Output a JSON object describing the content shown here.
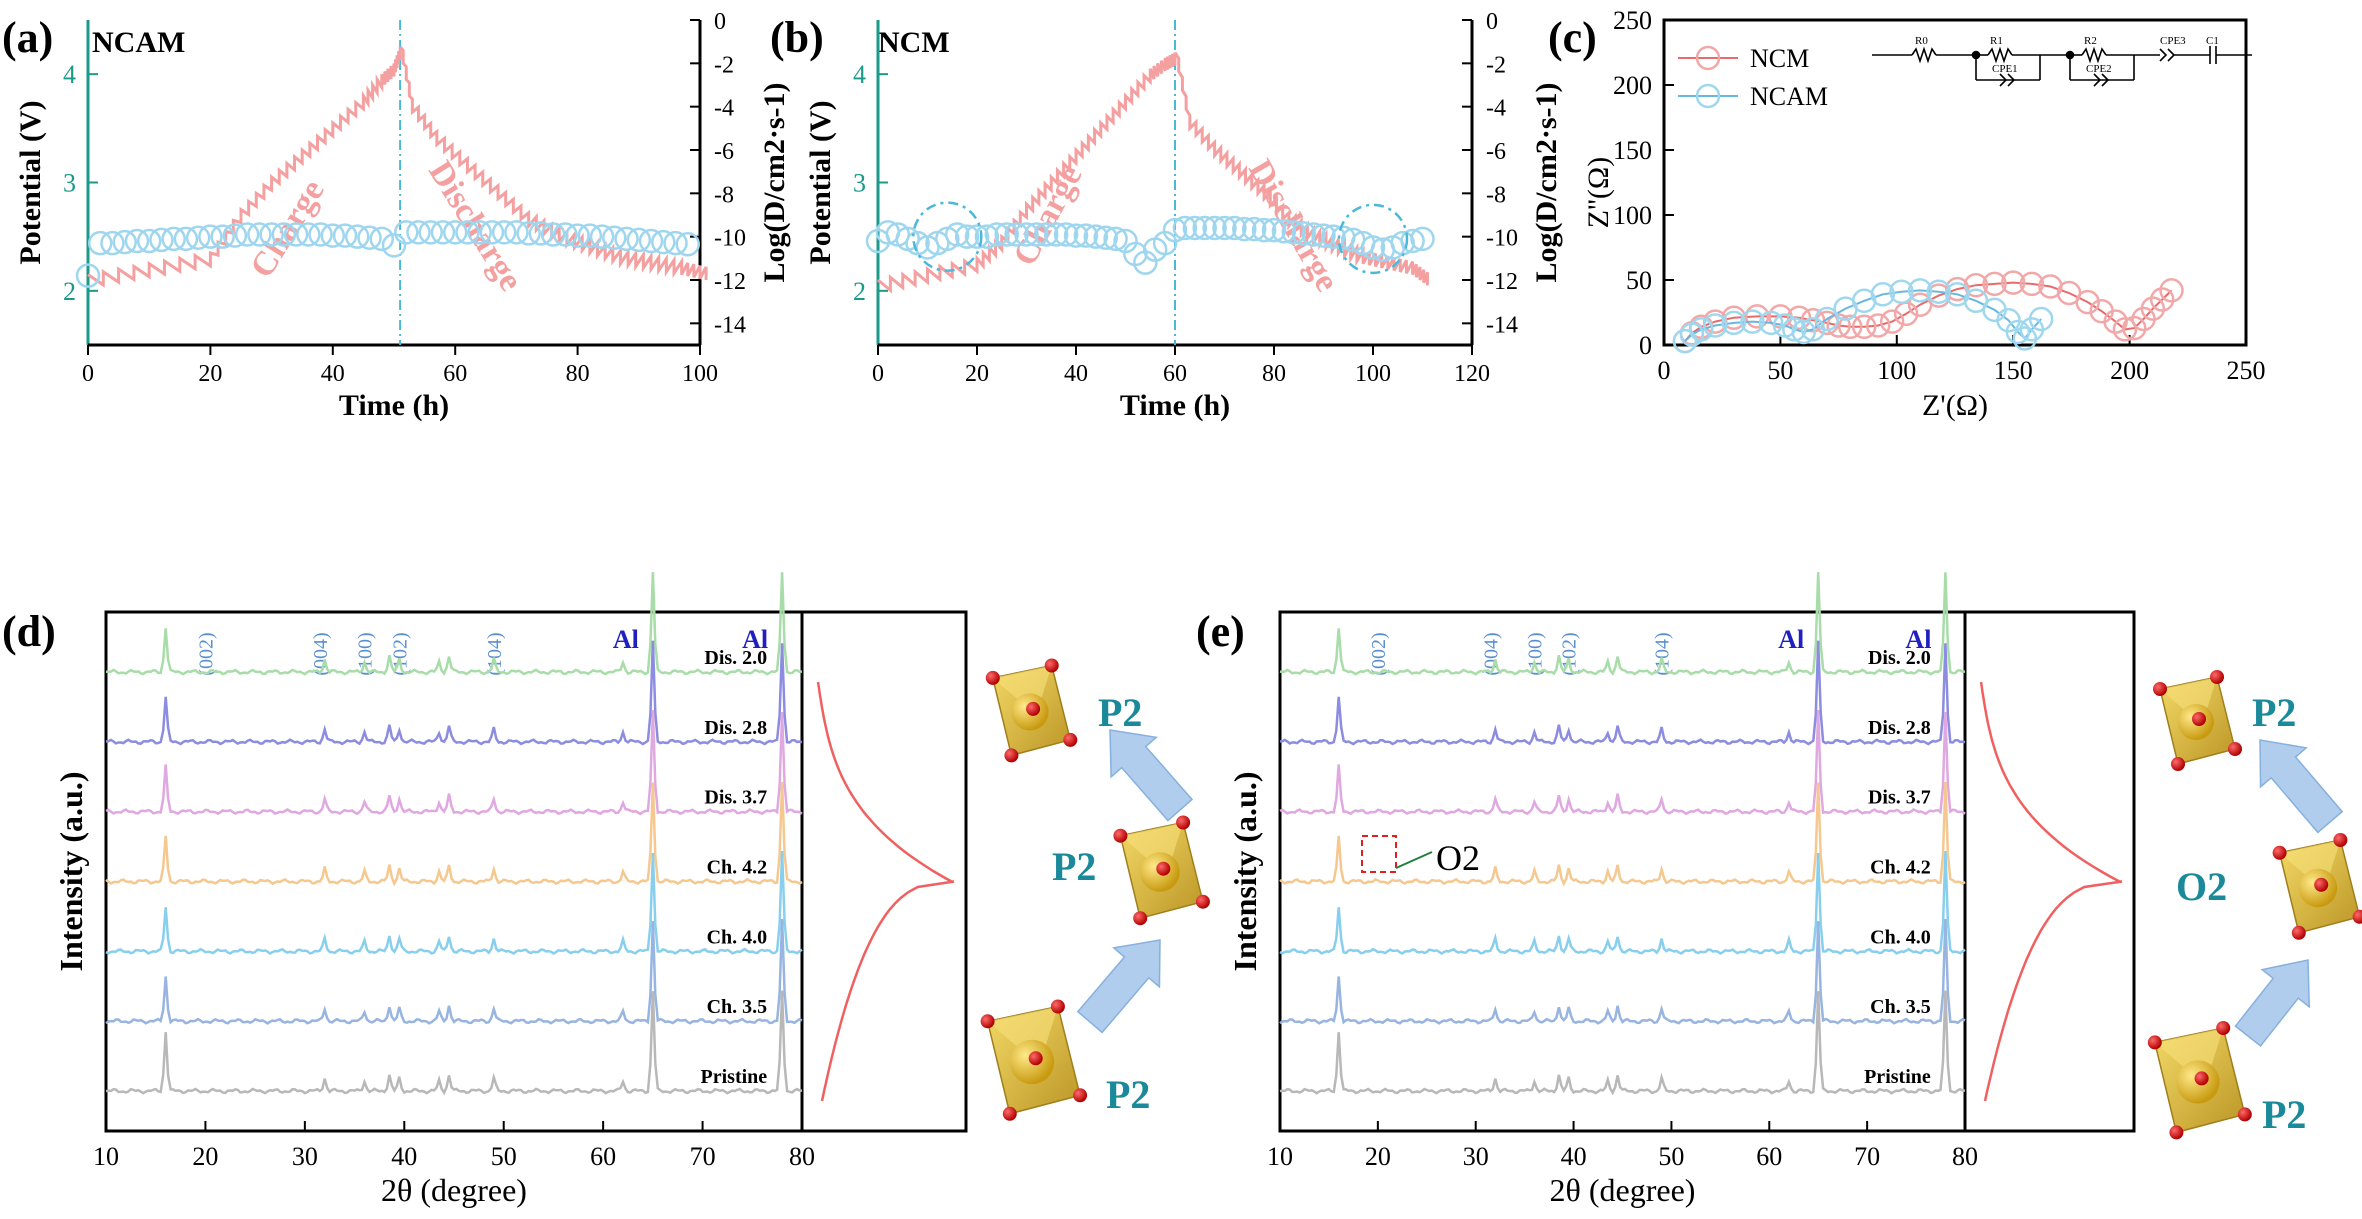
{
  "panels": {
    "a": {
      "letter": "(a)",
      "sample": "NCAM"
    },
    "b": {
      "letter": "(b)",
      "sample": "NCM"
    },
    "c": {
      "letter": "(c)"
    },
    "d": {
      "letter": "(d)"
    },
    "e": {
      "letter": "(e)"
    }
  },
  "structures": {
    "d": {
      "top": "P2",
      "middle": "P2",
      "bottom": "P2"
    },
    "e": {
      "top": "P2",
      "middle": "O2",
      "bottom": "P2"
    }
  },
  "circuit": {
    "labels": [
      "R0",
      "R1",
      "CPE1",
      "R2",
      "CPE2",
      "CPE3",
      "C1"
    ]
  },
  "colors": {
    "charge_curve": "#f4a0a0",
    "diffusion_marker": "#9fd6ef",
    "nyquist_ncm": "#f2a8a8",
    "nyquist_ncam": "#9fd8ee",
    "left_axis": "#1a9a8a",
    "miller_index": "#5a8fd0",
    "al_label": "#2020c0",
    "cycle_line": "#f06060",
    "octahedron": "#e8c030",
    "arrow": "#a8c8ec",
    "phase_label": "#1a8a9a"
  },
  "chart_data": [
    {
      "id": "a",
      "type": "line",
      "xlabel": "Time (h)",
      "ylabel": "Potential (V)",
      "y2label": "Log(D/cm2·s-1)",
      "xlim": [
        0,
        100
      ],
      "xticks": [
        0,
        20,
        40,
        60,
        80,
        100
      ],
      "ylim": [
        1.5,
        4.5
      ],
      "yticks": [
        2,
        3,
        4
      ],
      "y2lim": [
        -15,
        0
      ],
      "y2ticks": [
        0,
        -2,
        -4,
        -6,
        -8,
        -10,
        -12,
        -14
      ],
      "vline_x": 51,
      "annotations": [
        "Charge",
        "Discharge"
      ],
      "potential_charge": {
        "x": [
          0,
          10,
          20,
          25,
          30,
          35,
          40,
          45,
          48,
          50,
          51
        ],
        "y": [
          2.15,
          2.25,
          2.35,
          2.75,
          3.05,
          3.3,
          3.55,
          3.8,
          4.0,
          4.1,
          4.25
        ]
      },
      "potential_discharge": {
        "x": [
          51,
          53,
          57,
          62,
          67,
          72,
          77,
          82,
          87,
          92,
          97,
          101
        ],
        "y": [
          4.25,
          3.65,
          3.35,
          3.1,
          2.85,
          2.6,
          2.45,
          2.35,
          2.25,
          2.2,
          2.15,
          2.1
        ]
      },
      "diffusion_x": [
        0,
        2,
        4,
        6,
        8,
        10,
        12,
        14,
        16,
        18,
        20,
        22,
        24,
        26,
        28,
        30,
        32,
        34,
        36,
        38,
        40,
        42,
        44,
        46,
        48,
        50,
        52,
        54,
        56,
        58,
        60,
        62,
        64,
        66,
        68,
        70,
        72,
        74,
        76,
        78,
        80,
        82,
        84,
        86,
        88,
        90,
        92,
        94,
        96,
        98
      ],
      "diffusion_y": [
        -11.8,
        -10.3,
        -10.3,
        -10.25,
        -10.2,
        -10.2,
        -10.15,
        -10.1,
        -10.1,
        -10.05,
        -10.0,
        -10.0,
        -9.95,
        -9.9,
        -9.9,
        -9.9,
        -9.9,
        -9.9,
        -9.9,
        -9.9,
        -9.95,
        -9.95,
        -10.0,
        -10.05,
        -10.1,
        -10.4,
        -9.8,
        -9.8,
        -9.8,
        -9.8,
        -9.8,
        -9.8,
        -9.8,
        -9.8,
        -9.8,
        -9.8,
        -9.85,
        -9.85,
        -9.9,
        -9.9,
        -9.95,
        -9.95,
        -10.0,
        -10.05,
        -10.1,
        -10.15,
        -10.2,
        -10.25,
        -10.3,
        -10.35
      ]
    },
    {
      "id": "b",
      "type": "line",
      "xlabel": "Time (h)",
      "ylabel": "Potential (V)",
      "y2label": "Log(D/cm2·s-1)",
      "xlim": [
        0,
        120
      ],
      "xticks": [
        0,
        20,
        40,
        60,
        80,
        100,
        120
      ],
      "ylim": [
        1.5,
        4.5
      ],
      "yticks": [
        2,
        3,
        4
      ],
      "y2lim": [
        -15,
        0
      ],
      "y2ticks": [
        0,
        -2,
        -4,
        -6,
        -8,
        -10,
        -12,
        -14
      ],
      "vline_x": 60,
      "annotations": [
        "Charge",
        "Discharge"
      ],
      "potential_charge": {
        "x": [
          0,
          10,
          20,
          25,
          30,
          35,
          40,
          45,
          50,
          55,
          58,
          60
        ],
        "y": [
          2.1,
          2.2,
          2.3,
          2.5,
          2.8,
          3.05,
          3.3,
          3.55,
          3.8,
          4.05,
          4.15,
          4.2
        ]
      },
      "potential_discharge": {
        "x": [
          60,
          63,
          68,
          73,
          78,
          83,
          88,
          93,
          98,
          103,
          108,
          111
        ],
        "y": [
          4.2,
          3.5,
          3.25,
          3.05,
          2.85,
          2.6,
          2.45,
          2.35,
          2.25,
          2.2,
          2.15,
          2.05
        ]
      },
      "diffusion_x": [
        0,
        2,
        4,
        6,
        8,
        10,
        12,
        14,
        16,
        18,
        20,
        22,
        24,
        26,
        28,
        30,
        32,
        34,
        36,
        38,
        40,
        42,
        44,
        46,
        48,
        50,
        52,
        54,
        56,
        58,
        60,
        62,
        64,
        66,
        68,
        70,
        72,
        74,
        76,
        78,
        80,
        82,
        84,
        86,
        88,
        90,
        92,
        94,
        96,
        98,
        100,
        102,
        104,
        106,
        108,
        110
      ],
      "diffusion_y": [
        -10.2,
        -9.8,
        -9.9,
        -10.1,
        -10.3,
        -10.5,
        -10.3,
        -10.1,
        -9.9,
        -10.0,
        -10.0,
        -10.0,
        -9.9,
        -9.9,
        -9.9,
        -9.9,
        -9.9,
        -9.9,
        -9.9,
        -9.9,
        -9.95,
        -9.95,
        -10.0,
        -10.05,
        -10.1,
        -10.2,
        -10.8,
        -11.2,
        -10.6,
        -10.3,
        -9.7,
        -9.6,
        -9.6,
        -9.6,
        -9.6,
        -9.6,
        -9.6,
        -9.65,
        -9.65,
        -9.7,
        -9.7,
        -9.75,
        -9.8,
        -9.85,
        -9.9,
        -9.95,
        -10.0,
        -10.05,
        -10.15,
        -10.3,
        -10.5,
        -10.6,
        -10.5,
        -10.3,
        -10.2,
        -10.1
      ],
      "dash_circles": [
        {
          "x": 14,
          "y": -10.0
        },
        {
          "x": 100,
          "y": -10.1
        }
      ]
    },
    {
      "id": "c",
      "type": "scatter",
      "xlabel": "Z'(Ω)",
      "ylabel": "Z''(Ω)",
      "xlim": [
        0,
        250
      ],
      "xticks": [
        0,
        50,
        100,
        150,
        200,
        250
      ],
      "ylim": [
        0,
        250
      ],
      "yticks": [
        0,
        50,
        100,
        150,
        200,
        250
      ],
      "legend_position": "top-left",
      "series": [
        {
          "name": "NCM",
          "x": [
            9,
            12,
            16,
            22,
            30,
            40,
            50,
            58,
            64,
            70,
            75,
            80,
            86,
            92,
            98,
            104,
            110,
            118,
            126,
            134,
            142,
            150,
            158,
            166,
            174,
            182,
            188,
            194,
            198,
            202,
            206,
            210,
            214,
            218
          ],
          "y": [
            3,
            9,
            14,
            18,
            21,
            22,
            22,
            21,
            19,
            17,
            15,
            14,
            14,
            15,
            18,
            24,
            31,
            38,
            43,
            46,
            47,
            48,
            47,
            45,
            40,
            33,
            26,
            18,
            12,
            13,
            20,
            28,
            35,
            42
          ]
        },
        {
          "name": "NCAM",
          "x": [
            9,
            12,
            16,
            22,
            30,
            38,
            46,
            52,
            56,
            60,
            64,
            70,
            78,
            86,
            94,
            102,
            110,
            118,
            126,
            134,
            142,
            148,
            152,
            155,
            158,
            162
          ],
          "y": [
            3,
            8,
            12,
            15,
            17,
            18,
            17,
            15,
            12,
            10,
            12,
            20,
            28,
            34,
            39,
            41,
            42,
            41,
            39,
            34,
            27,
            19,
            10,
            5,
            12,
            20
          ]
        }
      ]
    },
    {
      "id": "d",
      "type": "line",
      "xlabel": "2θ (degree)",
      "ylabel": "Intensity (a.u.)",
      "xlim": [
        10,
        80
      ],
      "xticks": [
        10,
        20,
        30,
        40,
        50,
        60,
        70,
        80
      ],
      "miller_indices": [
        {
          "label": "(002)",
          "x": 20
        },
        {
          "label": "(004)",
          "x": 31.5
        },
        {
          "label": "(100)",
          "x": 36
        },
        {
          "label": "(102)",
          "x": 39.5
        },
        {
          "label": "(104)",
          "x": 49
        }
      ],
      "al_peaks": [
        {
          "label": "Al",
          "x": 65
        },
        {
          "label": "Al",
          "x": 78
        }
      ],
      "patterns": [
        {
          "name": "Dis. 2.0",
          "color": "#a8dca8"
        },
        {
          "name": "Dis. 2.8",
          "color": "#8c8ce0"
        },
        {
          "name": "Dis. 3.7",
          "color": "#e0a8e0"
        },
        {
          "name": "Ch. 4.2",
          "color": "#f5c890"
        },
        {
          "name": "Ch. 4.0",
          "color": "#88cfee"
        },
        {
          "name": "Ch. 3.5",
          "color": "#98b4e0"
        },
        {
          "name": "Pristine",
          "color": "#b8b8b8"
        }
      ],
      "peak_positions": [
        16,
        32,
        36,
        38.5,
        39.5,
        43.5,
        44.5,
        49,
        62,
        65,
        78
      ]
    },
    {
      "id": "e",
      "type": "line",
      "xlabel": "2θ (degree)",
      "ylabel": "Intensity (a.u.)",
      "xlim": [
        10,
        80
      ],
      "xticks": [
        10,
        20,
        30,
        40,
        50,
        60,
        70,
        80
      ],
      "miller_indices": [
        {
          "label": "(002)",
          "x": 20
        },
        {
          "label": "(004)",
          "x": 31.5
        },
        {
          "label": "(100)",
          "x": 36
        },
        {
          "label": "(102)",
          "x": 39.5
        },
        {
          "label": "(104)",
          "x": 49
        }
      ],
      "al_peaks": [
        {
          "label": "Al",
          "x": 65
        },
        {
          "label": "Al",
          "x": 78
        }
      ],
      "annotation": "O2",
      "patterns": [
        {
          "name": "Dis. 2.0",
          "color": "#a8dca8"
        },
        {
          "name": "Dis. 2.8",
          "color": "#8c8ce0"
        },
        {
          "name": "Dis. 3.7",
          "color": "#e0a8e0"
        },
        {
          "name": "Ch. 4.2",
          "color": "#f5c890"
        },
        {
          "name": "Ch. 4.0",
          "color": "#88cfee"
        },
        {
          "name": "Ch. 3.5",
          "color": "#98b4e0"
        },
        {
          "name": "Pristine",
          "color": "#b8b8b8"
        }
      ],
      "peak_positions": [
        16,
        32,
        36,
        38.5,
        39.5,
        43.5,
        44.5,
        49,
        62,
        65,
        78
      ]
    }
  ]
}
